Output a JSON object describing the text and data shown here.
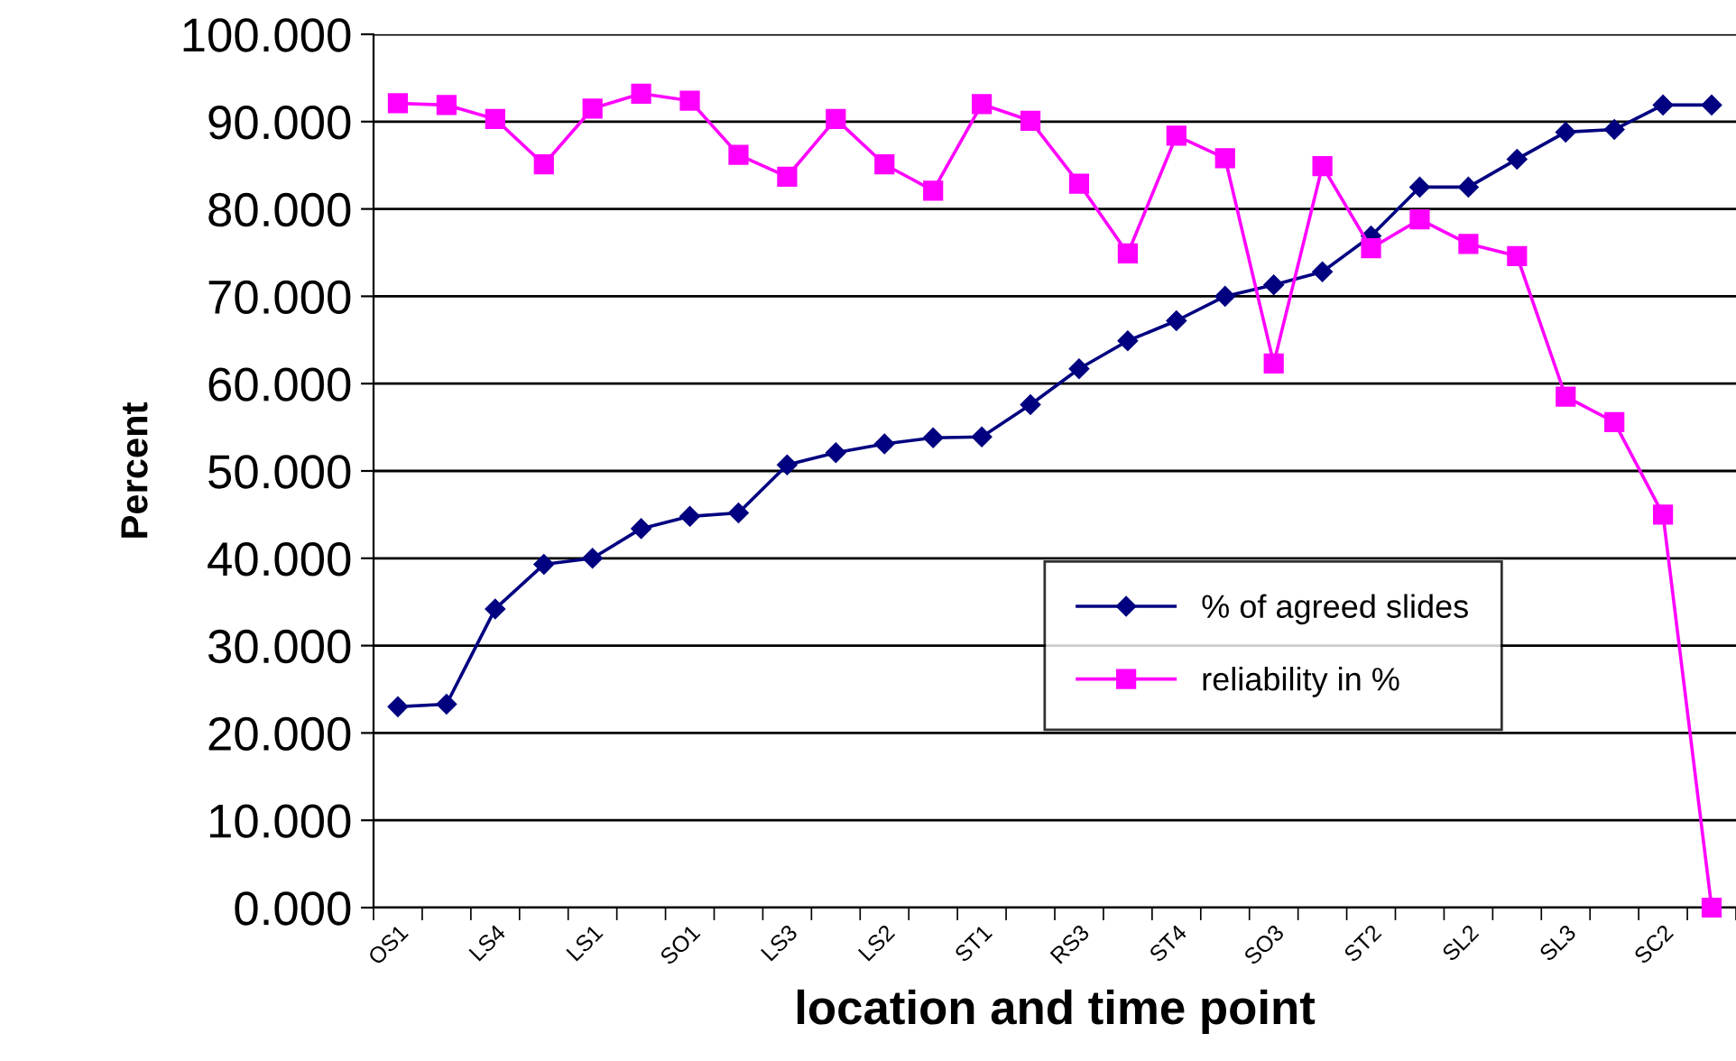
{
  "chart_data": {
    "type": "line",
    "xlabel": "location and time point",
    "ylabel": "Percent",
    "categories": [
      "OS1",
      null,
      "LS4",
      null,
      "LS1",
      null,
      "SO1",
      null,
      "LS3",
      null,
      "LS2",
      null,
      "ST1",
      null,
      "RS3",
      null,
      "ST4",
      null,
      "SO3",
      null,
      "ST2",
      null,
      "SL2",
      null,
      "SL3",
      null,
      "SC2",
      null
    ],
    "series": [
      {
        "name": "% of agreed slides",
        "color": "#000080",
        "marker": "diamond",
        "values": [
          23.0,
          23.3,
          34.2,
          39.3,
          40.0,
          43.4,
          44.8,
          45.2,
          50.7,
          52.1,
          53.1,
          53.8,
          53.9,
          57.6,
          61.7,
          64.9,
          67.2,
          70.0,
          71.3,
          72.8,
          76.9,
          82.5,
          82.5,
          85.7,
          88.8,
          89.1,
          91.9,
          91.9
        ]
      },
      {
        "name": "reliability in %",
        "color": "#ff00ff",
        "marker": "square",
        "values": [
          92.1,
          91.9,
          90.3,
          85.1,
          91.5,
          93.2,
          92.4,
          86.2,
          83.7,
          90.3,
          85.1,
          82.1,
          92.0,
          90.1,
          82.9,
          74.9,
          88.4,
          85.8,
          62.3,
          84.9,
          75.5,
          78.8,
          76.0,
          74.6,
          58.5,
          55.6,
          45.0,
          0.0
        ]
      }
    ],
    "ylim": [
      0,
      100
    ],
    "yticks": [
      {
        "value": 0,
        "label": "0.000"
      },
      {
        "value": 10,
        "label": "10.000"
      },
      {
        "value": 20,
        "label": "20.000"
      },
      {
        "value": 30,
        "label": "30.000"
      },
      {
        "value": 40,
        "label": "40.000"
      },
      {
        "value": 50,
        "label": "50.000"
      },
      {
        "value": 60,
        "label": "60.000"
      },
      {
        "value": 70,
        "label": "70.000"
      },
      {
        "value": 80,
        "label": "80.000"
      },
      {
        "value": 90,
        "label": "90.000"
      },
      {
        "value": 100,
        "label": "100.000"
      }
    ],
    "grid": "y",
    "legend": "center right",
    "line_style": "solid"
  }
}
